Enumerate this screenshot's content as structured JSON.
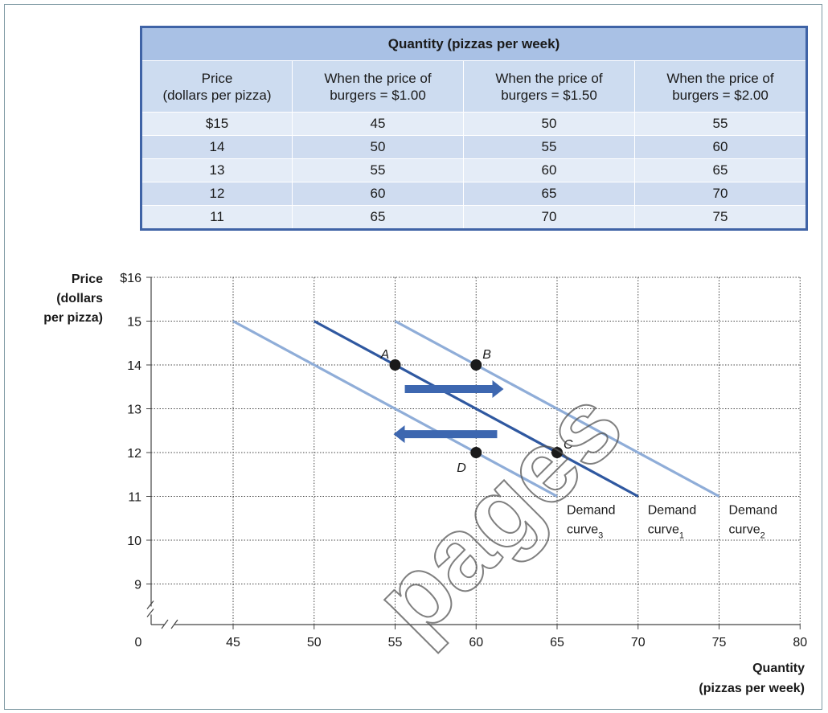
{
  "table": {
    "title": "Quantity (pizzas per week)",
    "headers": [
      [
        "Price",
        "(dollars per pizza)"
      ],
      [
        "When the price of",
        "burgers = $1.00"
      ],
      [
        "When the price of",
        "burgers = $1.50"
      ],
      [
        "When the price of",
        "burgers = $2.00"
      ]
    ],
    "rows": [
      [
        "$15",
        "45",
        "50",
        "55"
      ],
      [
        "14",
        "50",
        "55",
        "60"
      ],
      [
        "13",
        "55",
        "60",
        "65"
      ],
      [
        "12",
        "60",
        "65",
        "70"
      ],
      [
        "11",
        "65",
        "70",
        "75"
      ]
    ]
  },
  "chart_data": {
    "type": "line",
    "title": "",
    "ylabel": [
      "Price",
      "(dollars",
      "per pizza)"
    ],
    "xlabel": [
      "Quantity",
      "(pizzas per week)"
    ],
    "ylim": [
      8.5,
      16
    ],
    "xlim": [
      40,
      80
    ],
    "axis_break": true,
    "grid": true,
    "y_ticks": [
      {
        "value": 16,
        "label": "$16"
      },
      {
        "value": 15,
        "label": "15"
      },
      {
        "value": 14,
        "label": "14"
      },
      {
        "value": 13,
        "label": "13"
      },
      {
        "value": 12,
        "label": "12"
      },
      {
        "value": 11,
        "label": "11"
      },
      {
        "value": 10,
        "label": "10"
      },
      {
        "value": 9,
        "label": "9"
      }
    ],
    "x_ticks": [
      {
        "value": 45,
        "label": "45"
      },
      {
        "value": 50,
        "label": "50"
      },
      {
        "value": 55,
        "label": "55"
      },
      {
        "value": 60,
        "label": "60"
      },
      {
        "value": 65,
        "label": "65"
      },
      {
        "value": 70,
        "label": "70"
      },
      {
        "value": 75,
        "label": "75"
      },
      {
        "value": 80,
        "label": "80"
      }
    ],
    "origin_label": "0",
    "series": [
      {
        "key": "d3",
        "label": [
          "Demand",
          "curve",
          "3"
        ],
        "color": "#8fadd8",
        "points": [
          [
            45,
            15
          ],
          [
            65,
            11
          ]
        ]
      },
      {
        "key": "d1",
        "label": [
          "Demand",
          "curve",
          "1"
        ],
        "color": "#2f58a0",
        "points": [
          [
            50,
            15
          ],
          [
            70,
            11
          ]
        ]
      },
      {
        "key": "d2",
        "label": [
          "Demand",
          "curve",
          "2"
        ],
        "color": "#8fadd8",
        "points": [
          [
            55,
            15
          ],
          [
            75,
            11
          ]
        ]
      }
    ],
    "points": [
      {
        "label": "A",
        "x": 55,
        "y": 14
      },
      {
        "label": "B",
        "x": 60,
        "y": 14
      },
      {
        "label": "C",
        "x": 65,
        "y": 12
      },
      {
        "label": "D",
        "x": 60,
        "y": 12
      }
    ],
    "arrows": [
      {
        "direction": "right",
        "color": "#3d67b0"
      },
      {
        "direction": "left",
        "color": "#3d67b0"
      }
    ]
  },
  "watermark": "pages"
}
